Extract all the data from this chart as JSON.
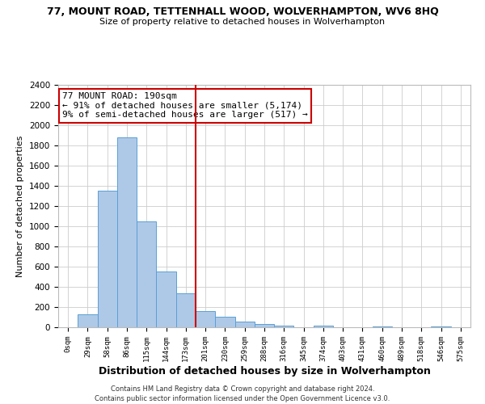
{
  "title": "77, MOUNT ROAD, TETTENHALL WOOD, WOLVERHAMPTON, WV6 8HQ",
  "subtitle": "Size of property relative to detached houses in Wolverhampton",
  "xlabel": "Distribution of detached houses by size in Wolverhampton",
  "ylabel": "Number of detached properties",
  "bar_color": "#aec9e8",
  "bar_edge_color": "#5a9fd4",
  "categories": [
    "0sqm",
    "29sqm",
    "58sqm",
    "86sqm",
    "115sqm",
    "144sqm",
    "173sqm",
    "201sqm",
    "230sqm",
    "259sqm",
    "288sqm",
    "316sqm",
    "345sqm",
    "374sqm",
    "403sqm",
    "431sqm",
    "460sqm",
    "489sqm",
    "518sqm",
    "546sqm",
    "575sqm"
  ],
  "values": [
    0,
    125,
    1350,
    1880,
    1050,
    550,
    340,
    160,
    105,
    60,
    30,
    20,
    0,
    15,
    0,
    0,
    10,
    0,
    0,
    5,
    0
  ],
  "vline_x": 7,
  "vline_color": "#cc0000",
  "annotation_line1": "77 MOUNT ROAD: 190sqm",
  "annotation_line2": "← 91% of detached houses are smaller (5,174)",
  "annotation_line3": "9% of semi-detached houses are larger (517) →",
  "annotation_box_edge": "#cc0000",
  "ylim": [
    0,
    2400
  ],
  "yticks": [
    0,
    200,
    400,
    600,
    800,
    1000,
    1200,
    1400,
    1600,
    1800,
    2000,
    2200,
    2400
  ],
  "footer1": "Contains HM Land Registry data © Crown copyright and database right 2024.",
  "footer2": "Contains public sector information licensed under the Open Government Licence v3.0.",
  "background_color": "#ffffff",
  "grid_color": "#cccccc"
}
